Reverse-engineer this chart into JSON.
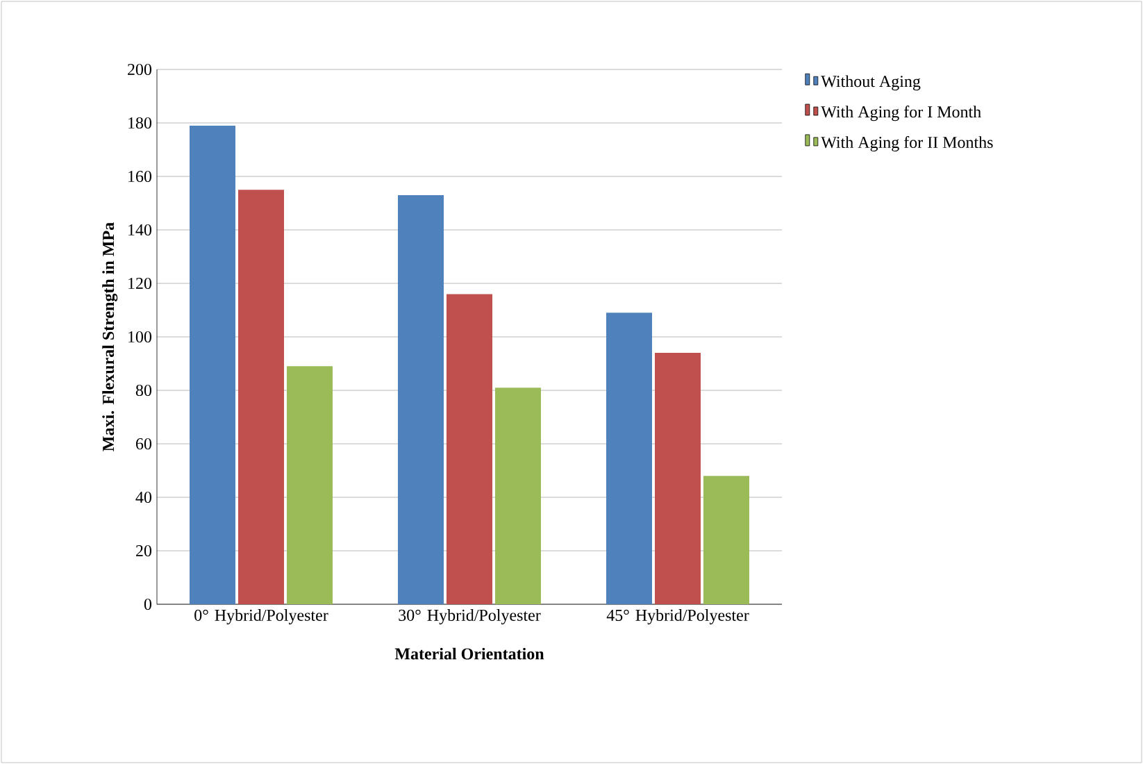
{
  "chart_data": {
    "type": "bar",
    "xlabel": "Material Orientation",
    "ylabel": "Maxi. Flexural Strength in MPa",
    "categories": [
      "0° Hybrid/Polyester",
      "30° Hybrid/Polyester",
      "45° Hybrid/Polyester"
    ],
    "series": [
      {
        "name": "Without Aging",
        "color": "#4f81bd",
        "values": [
          179,
          153,
          109
        ]
      },
      {
        "name": "With Aging for I Month",
        "color": "#c0504d",
        "values": [
          155,
          116,
          94
        ]
      },
      {
        "name": "With Aging for II Months",
        "color": "#9bbb59",
        "values": [
          89,
          81,
          48
        ]
      }
    ],
    "ylim": [
      0,
      200
    ],
    "yticks": [
      0,
      20,
      40,
      60,
      80,
      100,
      120,
      140,
      160,
      180,
      200
    ],
    "grid": "y",
    "legend": "top right"
  }
}
